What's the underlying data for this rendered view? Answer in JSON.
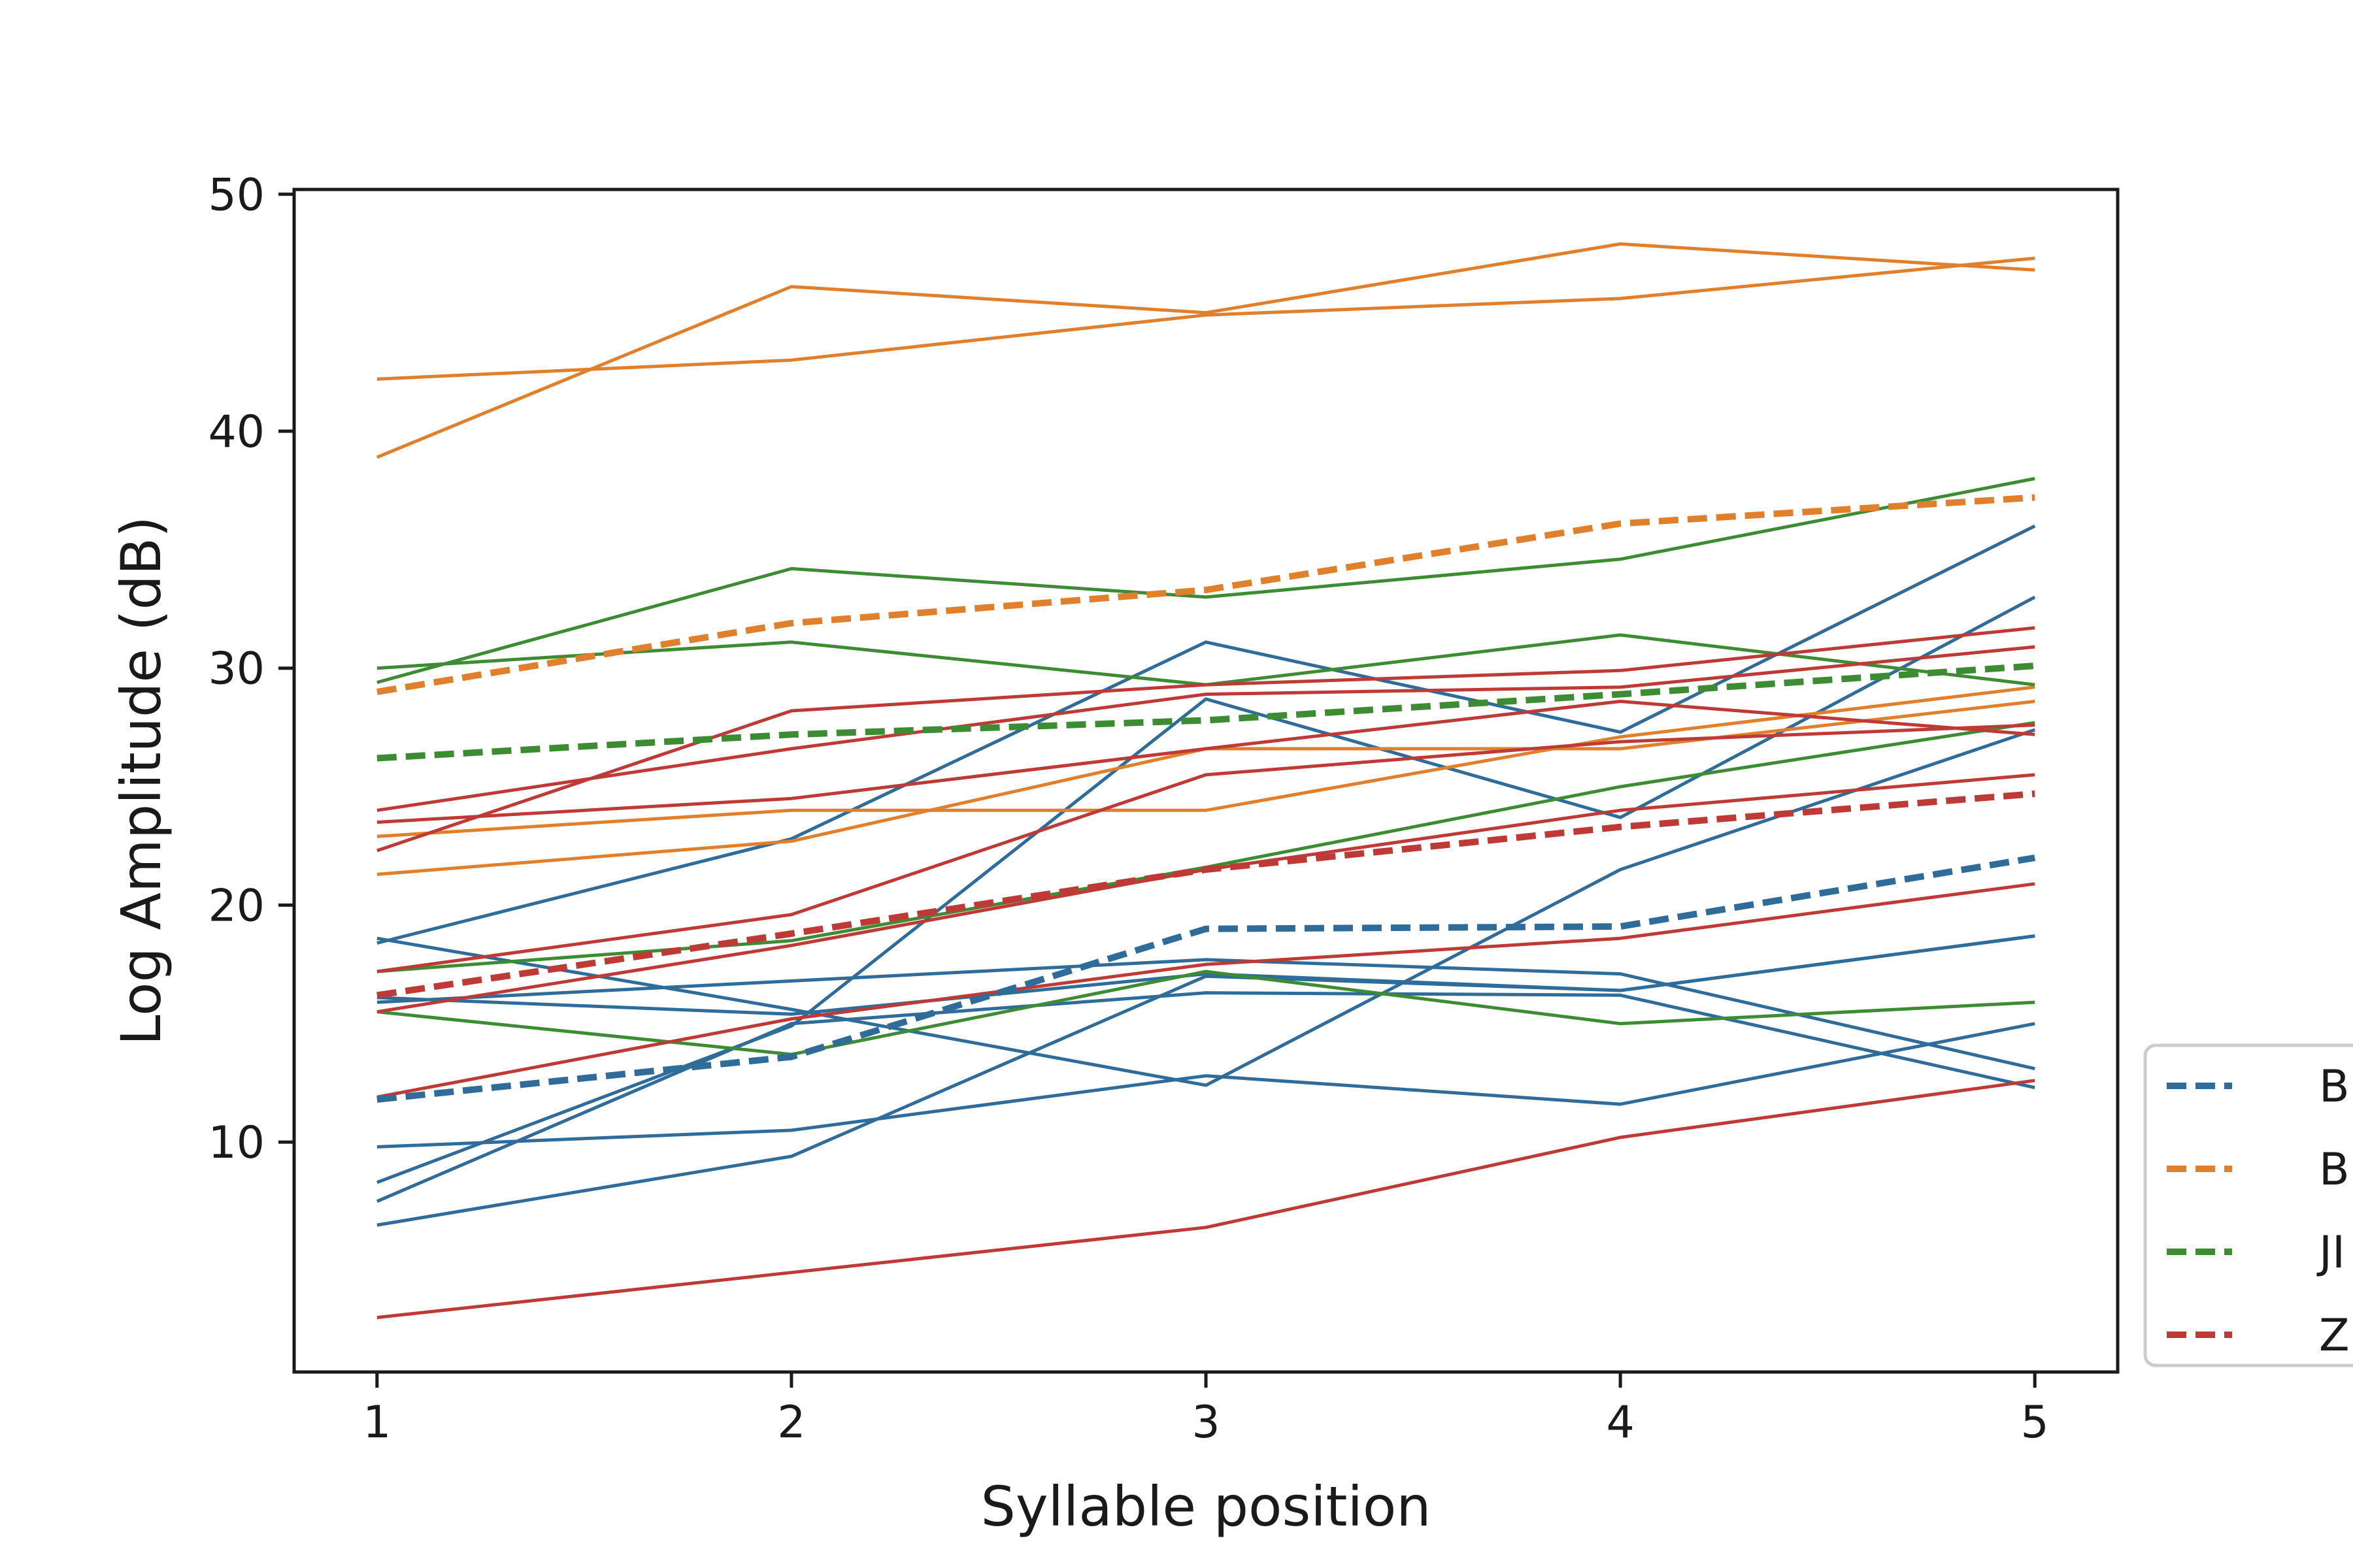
{
  "chart_data": {
    "type": "line",
    "title": "",
    "xlabel": "Syllable position",
    "ylabel": "Log Amplitude (dB)",
    "x": [
      1,
      2,
      3,
      4,
      5
    ],
    "xticks": [
      "1",
      "2",
      "3",
      "4",
      "5"
    ],
    "yticks": [
      "10",
      "20",
      "30",
      "40",
      "50"
    ],
    "xlim": [
      0.8,
      5.2
    ],
    "ylim": [
      0.3,
      50.2
    ],
    "grid": false,
    "legend_position": "right, outside plot area, clipped at image edge",
    "legend": [
      {
        "label": "B",
        "color": "#2f6c9a"
      },
      {
        "label": "B",
        "color": "#e07f2c"
      },
      {
        "label": "JI",
        "color": "#3d8c34"
      },
      {
        "label": "Z",
        "color": "#be3a36"
      }
    ],
    "series": [
      {
        "group": 0,
        "style": "solid",
        "values": [
          18.6,
          15.6,
          12.4,
          21.5,
          27.4
        ]
      },
      {
        "group": 0,
        "style": "solid",
        "values": [
          18.4,
          22.8,
          31.1,
          27.3,
          36.0
        ]
      },
      {
        "group": 0,
        "style": "solid",
        "values": [
          15.9,
          16.8,
          17.7,
          17.1,
          13.1
        ]
      },
      {
        "group": 0,
        "style": "solid",
        "values": [
          16.1,
          15.4,
          17.1,
          16.4,
          18.7
        ]
      },
      {
        "group": 0,
        "style": "solid",
        "values": [
          9.8,
          10.5,
          12.8,
          11.6,
          15.0
        ]
      },
      {
        "group": 0,
        "style": "solid",
        "values": [
          8.3,
          14.9,
          28.7,
          23.7,
          33.0
        ]
      },
      {
        "group": 0,
        "style": "solid",
        "values": [
          7.5,
          15.0,
          16.3,
          16.2,
          12.3
        ]
      },
      {
        "group": 0,
        "style": "solid",
        "values": [
          6.5,
          9.4,
          17.0,
          16.4,
          18.7
        ]
      },
      {
        "group": 0,
        "style": "dashed",
        "values": [
          11.8,
          13.6,
          19.0,
          19.1,
          22.0
        ]
      },
      {
        "group": 1,
        "style": "solid",
        "values": [
          42.2,
          43.0,
          44.9,
          45.6,
          47.3
        ]
      },
      {
        "group": 1,
        "style": "solid",
        "values": [
          38.9,
          46.1,
          45.0,
          47.9,
          46.8
        ]
      },
      {
        "group": 1,
        "style": "solid",
        "values": [
          22.9,
          24.0,
          24.0,
          27.1,
          29.2
        ]
      },
      {
        "group": 1,
        "style": "solid",
        "values": [
          21.3,
          22.7,
          26.6,
          26.6,
          28.6
        ]
      },
      {
        "group": 1,
        "style": "dashed",
        "values": [
          29.0,
          31.9,
          33.3,
          36.1,
          37.2
        ]
      },
      {
        "group": 2,
        "style": "solid",
        "values": [
          29.4,
          34.2,
          33.0,
          34.6,
          38.0
        ]
      },
      {
        "group": 2,
        "style": "solid",
        "values": [
          30.0,
          31.1,
          29.3,
          31.4,
          29.3
        ]
      },
      {
        "group": 2,
        "style": "solid",
        "values": [
          17.2,
          18.5,
          21.6,
          25.0,
          27.7
        ]
      },
      {
        "group": 2,
        "style": "solid",
        "values": [
          15.5,
          13.7,
          17.2,
          15.0,
          15.9
        ]
      },
      {
        "group": 2,
        "style": "dashed",
        "values": [
          26.2,
          27.2,
          27.8,
          28.9,
          30.1
        ]
      },
      {
        "group": 3,
        "style": "solid",
        "values": [
          22.3,
          28.2,
          29.3,
          29.9,
          31.7
        ]
      },
      {
        "group": 3,
        "style": "solid",
        "values": [
          24.0,
          26.6,
          28.9,
          29.2,
          30.9
        ]
      },
      {
        "group": 3,
        "style": "solid",
        "values": [
          23.5,
          24.5,
          26.6,
          28.6,
          27.2
        ]
      },
      {
        "group": 3,
        "style": "solid",
        "values": [
          17.2,
          19.6,
          25.5,
          26.9,
          27.6
        ]
      },
      {
        "group": 3,
        "style": "solid",
        "values": [
          15.5,
          18.3,
          21.5,
          24.0,
          25.5
        ]
      },
      {
        "group": 3,
        "style": "solid",
        "values": [
          11.9,
          15.2,
          17.5,
          18.6,
          20.9
        ]
      },
      {
        "group": 3,
        "style": "solid",
        "values": [
          2.6,
          4.5,
          6.4,
          10.2,
          12.6
        ]
      },
      {
        "group": 3,
        "style": "dashed",
        "values": [
          16.2,
          18.8,
          21.5,
          23.3,
          24.7
        ]
      }
    ]
  }
}
